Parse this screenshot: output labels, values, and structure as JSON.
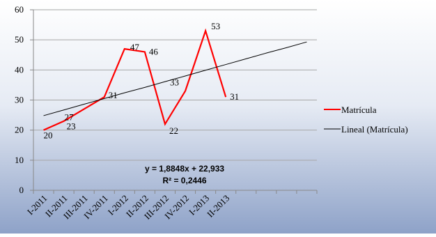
{
  "chart_data": {
    "type": "line",
    "categories": [
      "I-2011",
      "II-2011",
      "III-2011",
      "IV-2011",
      "I-2012",
      "II-2012",
      "III-2012",
      "IV-2012",
      "I-2013",
      "II-2013",
      null,
      null,
      null,
      null
    ],
    "series": [
      {
        "name": "Matrícula",
        "color": "#ff0000",
        "values": [
          20,
          23,
          27,
          31,
          47,
          46,
          22,
          33,
          53,
          31,
          null,
          null,
          null,
          null
        ],
        "data_labels": true
      },
      {
        "name": "Lineal (Matrícula)",
        "color": "#000000",
        "values": [
          24.8,
          26.7,
          28.6,
          30.5,
          32.4,
          34.2,
          36.1,
          38.0,
          39.9,
          41.8,
          43.7,
          45.6,
          47.4,
          49.3
        ],
        "data_labels": false
      }
    ],
    "annotations": [
      "y = 1,8848x + 22,933",
      "R² = 0,2446"
    ],
    "ylim": [
      0,
      60
    ],
    "yticks": [
      0,
      10,
      20,
      30,
      40,
      50,
      60
    ],
    "grid": true,
    "legend": "right"
  }
}
